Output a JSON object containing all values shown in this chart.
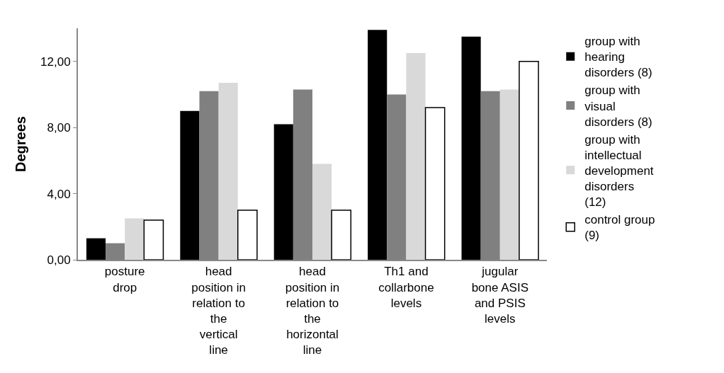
{
  "chart_data": {
    "type": "bar",
    "ylabel": "Degrees",
    "categories": [
      "posture drop",
      "head position in relation to the vertical line",
      "head position in relation to the horizontal line",
      "Th1 and collarbone levels",
      "jugular bone ASIS and PSIS levels"
    ],
    "series": [
      {
        "name": "group with hearing disorders (8)",
        "color": "#000000",
        "values": [
          1.3,
          9.0,
          8.2,
          13.9,
          13.5
        ]
      },
      {
        "name": "group with visual disorders (8)",
        "color": "#808080",
        "values": [
          1.0,
          10.2,
          10.3,
          10.0,
          10.2
        ]
      },
      {
        "name": "group with intellectual development disorders (12)",
        "color": "#d9d9d9",
        "values": [
          2.5,
          10.7,
          5.8,
          12.5,
          10.3
        ]
      },
      {
        "name": "control group (9)",
        "color": "#ffffff",
        "values": [
          2.4,
          3.0,
          3.0,
          9.2,
          12.0
        ]
      }
    ],
    "ylim": [
      0,
      14
    ],
    "yticks": [
      {
        "value": 0,
        "label": "0,00"
      },
      {
        "value": 4,
        "label": "4,00"
      },
      {
        "value": 8,
        "label": "8,00"
      },
      {
        "value": 12,
        "label": "12,00"
      }
    ],
    "legend": "right"
  }
}
